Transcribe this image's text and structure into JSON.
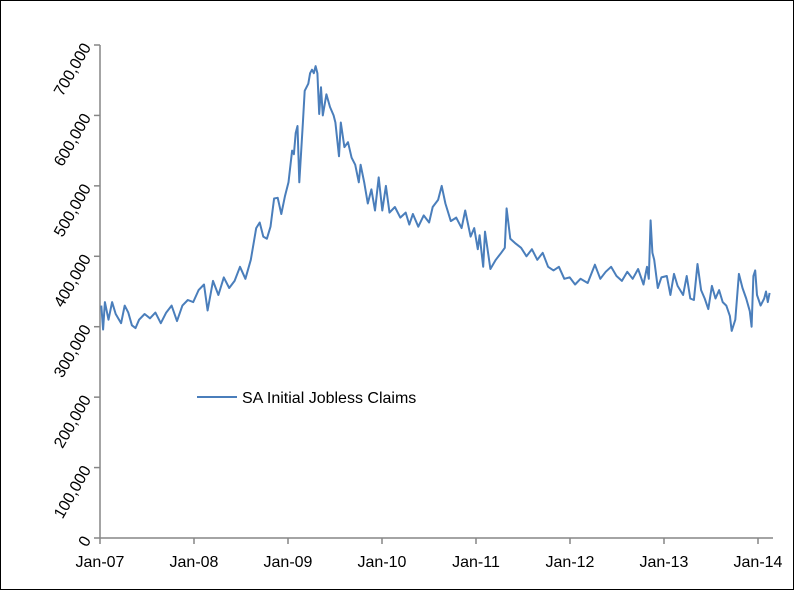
{
  "chart_data": {
    "type": "line",
    "title": "",
    "xlabel": "",
    "ylabel": "",
    "ylim": [
      0,
      700000
    ],
    "xlim": [
      "2007-01-01",
      "2014-02-20"
    ],
    "y_ticks": [
      "0",
      "100,000",
      "200,000",
      "300,000",
      "400,000",
      "500,000",
      "600,000",
      "700,000"
    ],
    "y_tick_values": [
      0,
      100000,
      200000,
      300000,
      400000,
      500000,
      600000,
      700000
    ],
    "x_ticks": [
      "Jan-07",
      "Jan-08",
      "Jan-09",
      "Jan-10",
      "Jan-11",
      "Jan-12",
      "Jan-13",
      "Jan-14"
    ],
    "x_tick_dates": [
      "2007-01-01",
      "2008-01-01",
      "2009-01-01",
      "2010-01-01",
      "2011-01-01",
      "2012-01-01",
      "2013-01-01",
      "2014-01-01"
    ],
    "grid": false,
    "legend_position": "center-left",
    "series": [
      {
        "name": "SA Initial Jobless Claims",
        "color": "#4a7ebb",
        "points": [
          [
            "2007-01-06",
            330000
          ],
          [
            "2007-01-13",
            296000
          ],
          [
            "2007-01-20",
            335000
          ],
          [
            "2007-02-03",
            310000
          ],
          [
            "2007-02-17",
            335000
          ],
          [
            "2007-03-03",
            318000
          ],
          [
            "2007-03-24",
            305000
          ],
          [
            "2007-04-07",
            330000
          ],
          [
            "2007-04-21",
            320000
          ],
          [
            "2007-05-05",
            302000
          ],
          [
            "2007-05-19",
            298000
          ],
          [
            "2007-06-02",
            310000
          ],
          [
            "2007-06-23",
            318000
          ],
          [
            "2007-07-14",
            312000
          ],
          [
            "2007-08-04",
            320000
          ],
          [
            "2007-08-25",
            305000
          ],
          [
            "2007-09-15",
            320000
          ],
          [
            "2007-10-06",
            330000
          ],
          [
            "2007-10-27",
            308000
          ],
          [
            "2007-11-17",
            330000
          ],
          [
            "2007-12-08",
            338000
          ],
          [
            "2007-12-29",
            335000
          ],
          [
            "2008-01-19",
            352000
          ],
          [
            "2008-02-09",
            360000
          ],
          [
            "2008-02-23",
            323000
          ],
          [
            "2008-03-15",
            365000
          ],
          [
            "2008-04-05",
            345000
          ],
          [
            "2008-04-26",
            370000
          ],
          [
            "2008-05-17",
            355000
          ],
          [
            "2008-06-07",
            365000
          ],
          [
            "2008-06-28",
            385000
          ],
          [
            "2008-07-19",
            368000
          ],
          [
            "2008-08-09",
            395000
          ],
          [
            "2008-08-30",
            440000
          ],
          [
            "2008-09-13",
            448000
          ],
          [
            "2008-09-27",
            428000
          ],
          [
            "2008-10-11",
            425000
          ],
          [
            "2008-10-25",
            442000
          ],
          [
            "2008-11-08",
            482000
          ],
          [
            "2008-11-22",
            483000
          ],
          [
            "2008-12-06",
            460000
          ],
          [
            "2008-12-20",
            485000
          ],
          [
            "2009-01-03",
            505000
          ],
          [
            "2009-01-17",
            550000
          ],
          [
            "2009-01-24",
            545000
          ],
          [
            "2009-01-31",
            575000
          ],
          [
            "2009-02-07",
            585000
          ],
          [
            "2009-02-14",
            505000
          ],
          [
            "2009-02-28",
            590000
          ],
          [
            "2009-03-07",
            635000
          ],
          [
            "2009-03-21",
            645000
          ],
          [
            "2009-03-28",
            660000
          ],
          [
            "2009-04-04",
            665000
          ],
          [
            "2009-04-11",
            660000
          ],
          [
            "2009-04-18",
            670000
          ],
          [
            "2009-04-25",
            660000
          ],
          [
            "2009-05-02",
            602000
          ],
          [
            "2009-05-09",
            640000
          ],
          [
            "2009-05-16",
            600000
          ],
          [
            "2009-05-30",
            630000
          ],
          [
            "2009-06-13",
            612000
          ],
          [
            "2009-06-27",
            600000
          ],
          [
            "2009-07-04",
            590000
          ],
          [
            "2009-07-18",
            542000
          ],
          [
            "2009-07-25",
            590000
          ],
          [
            "2009-08-08",
            555000
          ],
          [
            "2009-08-22",
            562000
          ],
          [
            "2009-09-05",
            540000
          ],
          [
            "2009-09-19",
            530000
          ],
          [
            "2009-10-03",
            505000
          ],
          [
            "2009-10-10",
            530000
          ],
          [
            "2009-10-24",
            505000
          ],
          [
            "2009-11-07",
            475000
          ],
          [
            "2009-11-21",
            495000
          ],
          [
            "2009-12-05",
            465000
          ],
          [
            "2009-12-19",
            512000
          ],
          [
            "2010-01-02",
            465000
          ],
          [
            "2010-01-16",
            500000
          ],
          [
            "2010-01-30",
            462000
          ],
          [
            "2010-02-20",
            470000
          ],
          [
            "2010-03-13",
            455000
          ],
          [
            "2010-04-03",
            462000
          ],
          [
            "2010-04-17",
            445000
          ],
          [
            "2010-05-01",
            460000
          ],
          [
            "2010-05-22",
            442000
          ],
          [
            "2010-06-12",
            458000
          ],
          [
            "2010-07-03",
            448000
          ],
          [
            "2010-07-17",
            470000
          ],
          [
            "2010-08-07",
            480000
          ],
          [
            "2010-08-21",
            500000
          ],
          [
            "2010-09-04",
            475000
          ],
          [
            "2010-09-25",
            450000
          ],
          [
            "2010-10-16",
            455000
          ],
          [
            "2010-11-06",
            440000
          ],
          [
            "2010-11-20",
            465000
          ],
          [
            "2010-12-11",
            428000
          ],
          [
            "2010-12-25",
            440000
          ],
          [
            "2011-01-08",
            410000
          ],
          [
            "2011-01-15",
            430000
          ],
          [
            "2011-01-29",
            385000
          ],
          [
            "2011-02-05",
            435000
          ],
          [
            "2011-02-26",
            382000
          ],
          [
            "2011-03-19",
            395000
          ],
          [
            "2011-04-09",
            405000
          ],
          [
            "2011-04-23",
            412000
          ],
          [
            "2011-04-30",
            468000
          ],
          [
            "2011-05-14",
            425000
          ],
          [
            "2011-06-04",
            418000
          ],
          [
            "2011-06-25",
            412000
          ],
          [
            "2011-07-16",
            400000
          ],
          [
            "2011-08-06",
            410000
          ],
          [
            "2011-08-27",
            395000
          ],
          [
            "2011-09-17",
            405000
          ],
          [
            "2011-10-08",
            385000
          ],
          [
            "2011-10-29",
            380000
          ],
          [
            "2011-11-19",
            385000
          ],
          [
            "2011-12-10",
            368000
          ],
          [
            "2011-12-31",
            370000
          ],
          [
            "2012-01-21",
            360000
          ],
          [
            "2012-02-11",
            368000
          ],
          [
            "2012-03-10",
            362000
          ],
          [
            "2012-04-07",
            388000
          ],
          [
            "2012-04-28",
            368000
          ],
          [
            "2012-05-19",
            378000
          ],
          [
            "2012-06-09",
            385000
          ],
          [
            "2012-06-30",
            372000
          ],
          [
            "2012-07-21",
            365000
          ],
          [
            "2012-08-11",
            378000
          ],
          [
            "2012-09-01",
            368000
          ],
          [
            "2012-09-22",
            382000
          ],
          [
            "2012-10-13",
            360000
          ],
          [
            "2012-10-27",
            385000
          ],
          [
            "2012-11-03",
            368000
          ],
          [
            "2012-11-10",
            451000
          ],
          [
            "2012-11-17",
            405000
          ],
          [
            "2012-11-24",
            395000
          ],
          [
            "2012-12-08",
            355000
          ],
          [
            "2012-12-22",
            370000
          ],
          [
            "2013-01-12",
            372000
          ],
          [
            "2013-01-26",
            345000
          ],
          [
            "2013-02-09",
            375000
          ],
          [
            "2013-02-23",
            358000
          ],
          [
            "2013-03-16",
            345000
          ],
          [
            "2013-03-30",
            372000
          ],
          [
            "2013-04-13",
            340000
          ],
          [
            "2013-04-27",
            338000
          ],
          [
            "2013-05-11",
            389000
          ],
          [
            "2013-05-25",
            352000
          ],
          [
            "2013-06-08",
            340000
          ],
          [
            "2013-06-22",
            325000
          ],
          [
            "2013-07-06",
            358000
          ],
          [
            "2013-07-20",
            340000
          ],
          [
            "2013-08-03",
            352000
          ],
          [
            "2013-08-17",
            335000
          ],
          [
            "2013-08-31",
            330000
          ],
          [
            "2013-09-14",
            315000
          ],
          [
            "2013-09-21",
            294000
          ],
          [
            "2013-10-05",
            310000
          ],
          [
            "2013-10-19",
            375000
          ],
          [
            "2013-11-02",
            355000
          ],
          [
            "2013-11-16",
            340000
          ],
          [
            "2013-11-30",
            322000
          ],
          [
            "2013-12-07",
            300000
          ],
          [
            "2013-12-14",
            372000
          ],
          [
            "2013-12-21",
            380000
          ],
          [
            "2013-12-28",
            345000
          ],
          [
            "2014-01-11",
            330000
          ],
          [
            "2014-01-25",
            340000
          ],
          [
            "2014-02-01",
            350000
          ],
          [
            "2014-02-08",
            335000
          ],
          [
            "2014-02-15",
            348000
          ]
        ]
      }
    ]
  }
}
